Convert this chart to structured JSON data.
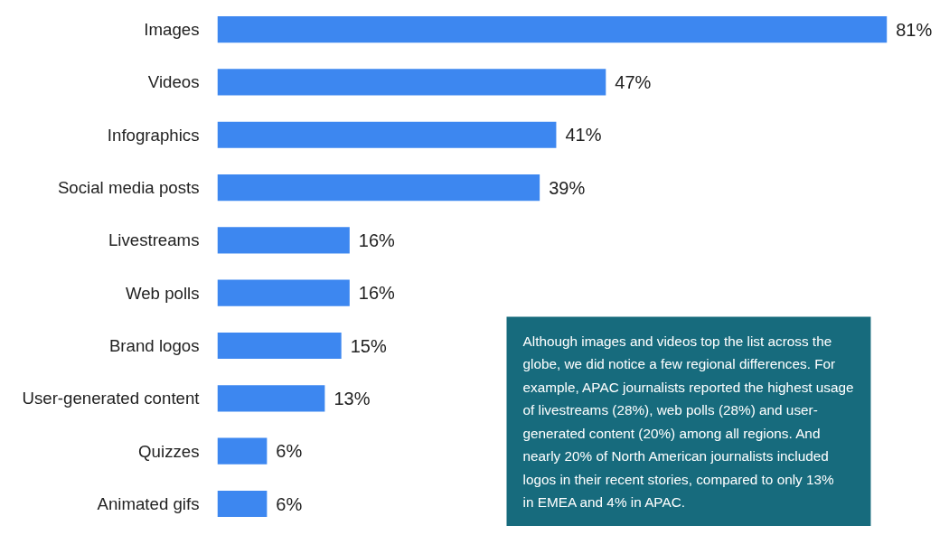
{
  "chart_data": {
    "type": "bar",
    "orientation": "horizontal",
    "categories": [
      "Images",
      "Videos",
      "Infographics",
      "Social media posts",
      "Livestreams",
      "Web polls",
      "Brand logos",
      "User-generated content",
      "Quizzes",
      "Animated gifs"
    ],
    "values": [
      81,
      47,
      41,
      39,
      16,
      16,
      15,
      13,
      6,
      6
    ],
    "value_labels": [
      "81%",
      "47%",
      "41%",
      "39%",
      "16%",
      "16%",
      "15%",
      "13%",
      "6%",
      "6%"
    ],
    "color": "#3d87f0",
    "grid": false,
    "annotations": [
      "Although images and videos top the list across the globe, we did notice a few regional differences. For example, APAC journalists reported the highest usage of livestreams (28%), web polls (28%) and user-generated content (20%) among all regions. And nearly 20% of North American journalists included logos in their recent stories, compared to only 13% in EMEA and 4% in APAC."
    ]
  }
}
